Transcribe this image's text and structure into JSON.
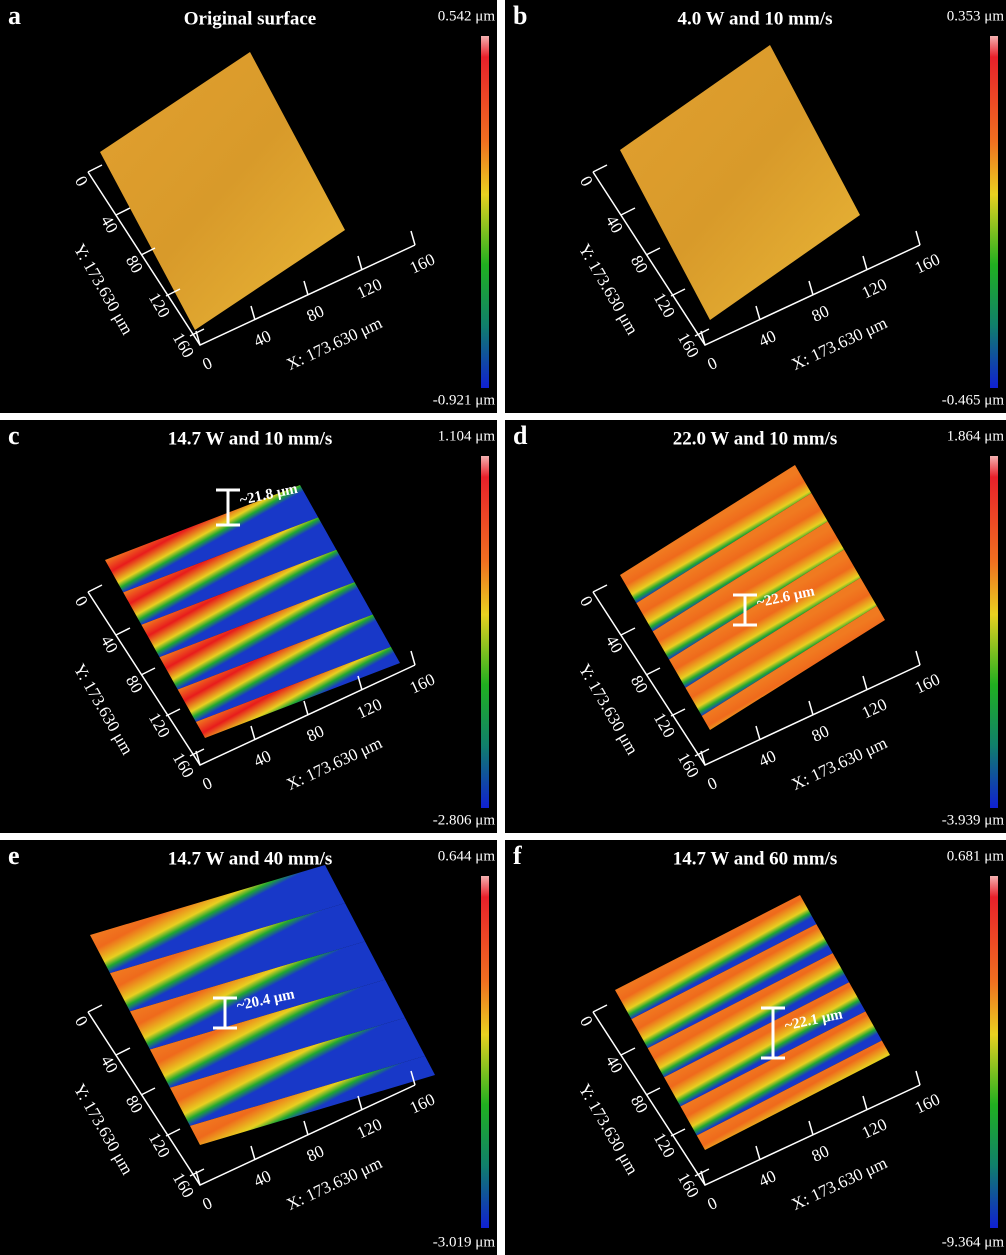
{
  "panels": [
    {
      "label": "a",
      "title": "Original surface",
      "scale_max": "0.542 μm",
      "scale_min": "-0.921 μm",
      "x_axis_label": "X: 173.630 μm",
      "y_axis_label": "Y: 173.630 μm",
      "x_ticks": [
        "0",
        "40",
        "80",
        "120",
        "160"
      ],
      "y_ticks": [
        "0",
        "40",
        "80",
        "120",
        "160"
      ]
    },
    {
      "label": "b",
      "title": "4.0 W and 10 mm/s",
      "scale_max": "0.353 μm",
      "scale_min": "-0.465 μm",
      "x_axis_label": "X: 173.630 μm",
      "y_axis_label": "Y: 173.630 μm",
      "x_ticks": [
        "0",
        "40",
        "80",
        "120",
        "160"
      ],
      "y_ticks": [
        "0",
        "40",
        "80",
        "120",
        "160"
      ]
    },
    {
      "label": "c",
      "title": "14.7 W and 10 mm/s",
      "scale_max": "1.104 μm",
      "scale_min": "-2.806 μm",
      "x_axis_label": "X: 173.630 μm",
      "y_axis_label": "Y: 173.630 μm",
      "x_ticks": [
        "0",
        "40",
        "80",
        "120",
        "160"
      ],
      "y_ticks": [
        "0",
        "40",
        "80",
        "120",
        "160"
      ],
      "annotation": "~21.8 μm"
    },
    {
      "label": "d",
      "title": "22.0 W and 10 mm/s",
      "scale_max": "1.864 μm",
      "scale_min": "-3.939 μm",
      "x_axis_label": "X: 173.630 μm",
      "y_axis_label": "Y: 173.630 μm",
      "x_ticks": [
        "0",
        "40",
        "80",
        "120",
        "160"
      ],
      "y_ticks": [
        "0",
        "40",
        "80",
        "120",
        "160"
      ],
      "annotation": "~22.6 μm"
    },
    {
      "label": "e",
      "title": "14.7 W and 40 mm/s",
      "scale_max": "0.644 μm",
      "scale_min": "-3.019 μm",
      "x_axis_label": "X: 173.630 μm",
      "y_axis_label": "Y: 173.630 μm",
      "x_ticks": [
        "0",
        "40",
        "80",
        "120",
        "160"
      ],
      "y_ticks": [
        "0",
        "40",
        "80",
        "120",
        "160"
      ],
      "annotation": "~20.4 μm"
    },
    {
      "label": "f",
      "title": "14.7 W and 60 mm/s",
      "scale_max": "0.681 μm",
      "scale_min": "-9.364 μm",
      "x_axis_label": "X: 173.630 μm",
      "y_axis_label": "Y: 173.630 μm",
      "x_ticks": [
        "0",
        "40",
        "80",
        "120",
        "160"
      ],
      "y_ticks": [
        "0",
        "40",
        "80",
        "120",
        "160"
      ],
      "annotation": "~22.1 μm"
    }
  ]
}
